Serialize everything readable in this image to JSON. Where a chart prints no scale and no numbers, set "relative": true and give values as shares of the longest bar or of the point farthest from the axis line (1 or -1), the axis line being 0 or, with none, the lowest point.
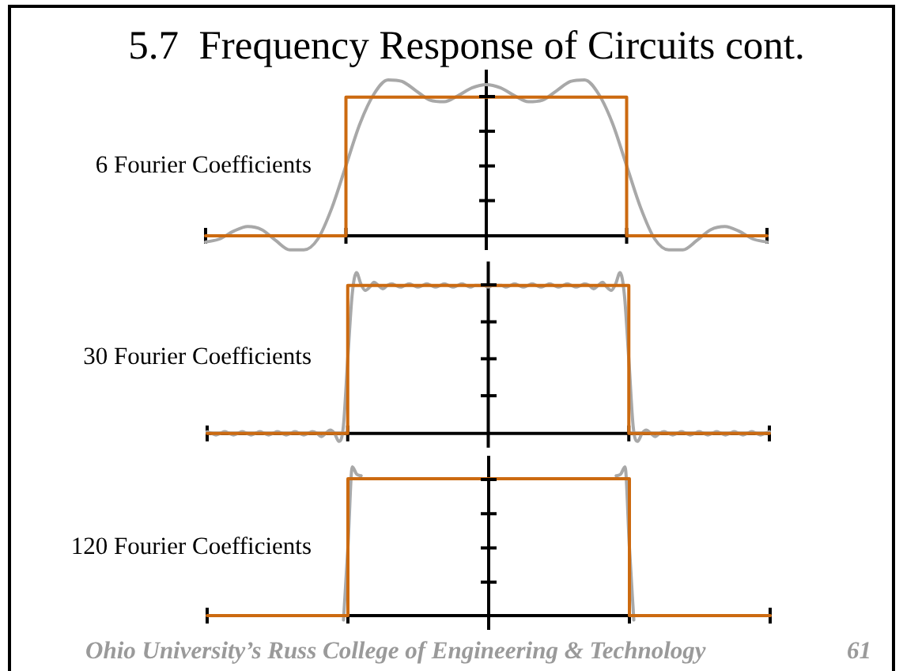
{
  "chart_data": [
    {
      "type": "line",
      "title": "5.7  Frequency Response of Circuits cont.",
      "ylabel": "6 Fourier Coefficients",
      "relative": true,
      "categories": [
        null,
        null,
        null,
        null,
        null,
        null,
        null,
        null,
        null,
        null,
        null,
        null,
        null,
        null,
        null,
        null,
        null,
        null,
        null,
        null,
        null,
        null,
        null,
        null,
        null,
        null,
        null,
        null,
        null,
        null,
        null,
        null,
        null,
        null,
        null,
        null,
        null,
        null,
        null,
        null,
        null
      ],
      "series": [
        {
          "color": "#a8a8a8",
          "values": [
            -0.04,
            -0.02,
            0.03,
            0.06,
            0.04,
            -0.03,
            -0.09,
            -0.09,
            -0.02,
            0.18,
            0.45,
            0.72,
            0.91,
            1.0,
            0.99,
            0.93,
            0.87,
            0.86,
            0.9,
            0.95,
            0.97,
            0.95,
            0.9,
            0.86,
            0.87,
            0.93,
            0.99,
            1.0,
            0.91,
            0.72,
            0.45,
            0.18,
            -0.02,
            -0.09,
            -0.09,
            -0.03,
            0.04,
            0.06,
            0.03,
            -0.02,
            -0.04
          ]
        },
        {
          "type": "step",
          "color": "#cc6a10",
          "values": [
            0,
            0,
            0,
            0,
            0,
            0,
            0,
            0,
            0,
            0,
            0.89,
            0.89,
            0.89,
            0.89,
            0.89,
            0.89,
            0.89,
            0.89,
            0.89,
            0.89,
            0.89,
            0.89,
            0.89,
            0.89,
            0.89,
            0.89,
            0.89,
            0.89,
            0.89,
            0.89,
            0,
            0,
            0,
            0,
            0,
            0,
            0,
            0,
            0,
            0,
            0
          ]
        }
      ]
    },
    {
      "type": "line",
      "ylabel": "30 Fourier Coefficients",
      "relative": true,
      "categories": [
        null,
        null,
        null,
        null,
        null,
        null,
        null,
        null,
        null,
        null,
        null,
        null,
        null,
        null,
        null,
        null,
        null,
        null,
        null,
        null,
        null,
        null,
        null,
        null,
        null,
        null,
        null,
        null,
        null,
        null,
        null,
        null,
        null,
        null,
        null,
        null,
        null,
        null,
        null,
        null,
        null,
        null,
        null,
        null,
        null,
        null,
        null,
        null,
        null,
        null,
        null,
        null,
        null,
        null,
        null,
        null,
        null,
        null,
        null,
        null,
        null,
        null,
        null,
        null,
        null,
        null,
        null,
        null,
        null,
        null,
        null,
        null,
        null,
        null,
        null,
        null,
        null,
        null,
        null,
        null,
        null,
        null,
        null,
        null,
        null,
        null,
        null,
        null,
        null,
        null,
        null,
        null,
        null,
        null,
        null,
        null,
        null,
        null,
        null,
        null,
        null,
        null,
        null,
        null,
        null,
        null,
        null,
        null,
        null,
        null,
        null,
        null,
        null,
        null,
        null,
        null,
        null,
        null,
        null,
        null,
        null,
        null,
        null,
        null,
        null,
        null,
        null,
        null,
        null
      ],
      "series": [
        {
          "color": "#a8a8a8",
          "values": [
            0.01,
            0,
            -0.01,
            0,
            0.01,
            0,
            -0.01,
            0,
            0.01,
            0,
            -0.01,
            0,
            0.01,
            0,
            -0.01,
            0,
            0.01,
            0,
            -0.01,
            0,
            0.01,
            0,
            -0.01,
            0,
            0.01,
            0,
            -0.02,
            0,
            0.02,
            0,
            -0.05,
            0.04,
            0.46,
            0.86,
            1.0,
            0.93,
            0.89,
            0.91,
            0.94,
            0.92,
            0.9,
            0.92,
            0.93,
            0.92,
            0.91,
            0.92,
            0.93,
            0.92,
            0.91,
            0.92,
            0.93,
            0.92,
            0.91,
            0.92,
            0.93,
            0.92,
            0.91,
            0.92,
            0.93,
            0.92,
            0.91,
            0.92,
            0.92,
            0.92,
            0.91,
            0.92,
            0.92,
            0.92,
            0.91,
            0.92,
            0.93,
            0.92,
            0.91,
            0.92,
            0.93,
            0.92,
            0.91,
            0.92,
            0.93,
            0.92,
            0.91,
            0.92,
            0.93,
            0.92,
            0.91,
            0.92,
            0.93,
            0.92,
            0.9,
            0.92,
            0.94,
            0.91,
            0.89,
            0.93,
            1.0,
            0.86,
            0.46,
            0.04,
            -0.05,
            0,
            0.02,
            0,
            -0.02,
            0,
            0.01,
            0,
            -0.01,
            0,
            0.01,
            0,
            -0.01,
            0,
            0.01,
            0,
            -0.01,
            0,
            0.01,
            0,
            -0.01,
            0,
            0.01,
            0,
            -0.01,
            0,
            0.01,
            0,
            -0.01,
            0,
            0.01
          ]
        },
        {
          "type": "step",
          "color": "#cc6a10",
          "values": [
            0,
            0,
            0,
            0,
            0,
            0,
            0,
            0,
            0,
            0,
            0,
            0,
            0,
            0,
            0,
            0,
            0,
            0,
            0,
            0,
            0,
            0,
            0,
            0,
            0,
            0,
            0,
            0,
            0,
            0,
            0,
            0,
            0.92,
            0.92,
            0.92,
            0.92,
            0.92,
            0.92,
            0.92,
            0.92,
            0.92,
            0.92,
            0.92,
            0.92,
            0.92,
            0.92,
            0.92,
            0.92,
            0.92,
            0.92,
            0.92,
            0.92,
            0.92,
            0.92,
            0.92,
            0.92,
            0.92,
            0.92,
            0.92,
            0.92,
            0.92,
            0.92,
            0.92,
            0.92,
            0.92,
            0.92,
            0.92,
            0.92,
            0.92,
            0.92,
            0.92,
            0.92,
            0.92,
            0.92,
            0.92,
            0.92,
            0.92,
            0.92,
            0.92,
            0.92,
            0.92,
            0.92,
            0.92,
            0.92,
            0.92,
            0.92,
            0.92,
            0.92,
            0.92,
            0.92,
            0.92,
            0.92,
            0.92,
            0.92,
            0.92,
            0.92,
            0,
            0,
            0,
            0,
            0,
            0,
            0,
            0,
            0,
            0,
            0,
            0,
            0,
            0,
            0,
            0,
            0,
            0,
            0,
            0,
            0,
            0,
            0,
            0,
            0,
            0,
            0,
            0,
            0,
            0,
            0,
            0,
            0
          ]
        }
      ]
    },
    {
      "type": "line",
      "ylabel": "120 Fourier Coefficients",
      "relative": true,
      "categories": [
        null,
        null,
        null,
        null,
        null,
        null,
        null,
        null,
        null,
        null,
        null,
        null,
        null,
        null,
        null,
        null,
        null,
        null,
        null,
        null,
        null,
        null,
        null,
        null,
        null,
        null,
        null,
        null,
        null,
        null,
        null,
        null,
        null,
        null,
        null,
        null,
        null,
        null,
        null,
        null,
        null,
        null,
        null,
        null,
        null,
        null,
        null,
        null,
        null,
        null,
        null,
        null,
        null,
        null,
        null,
        null,
        null,
        null,
        null,
        null,
        null,
        null,
        null,
        null,
        null,
        null,
        null,
        null,
        null,
        null,
        null,
        null,
        null,
        null,
        null,
        null,
        null,
        null,
        null,
        null,
        null,
        null,
        null,
        null,
        null,
        null,
        null,
        null,
        null,
        null,
        null,
        null,
        null,
        null,
        null,
        null,
        null,
        null,
        null,
        null,
        null,
        null,
        null,
        null,
        null,
        null,
        null,
        null,
        null,
        null,
        null,
        null,
        null,
        null,
        null,
        null,
        null,
        null,
        null,
        null,
        null,
        null,
        null,
        null,
        null,
        null,
        null,
        null,
        null
      ],
      "series": [
        {
          "color": "#a8a8a8",
          "values": [
            null,
            null,
            null,
            null,
            null,
            null,
            null,
            null,
            null,
            null,
            null,
            null,
            null,
            null,
            null,
            null,
            null,
            null,
            null,
            null,
            null,
            null,
            null,
            null,
            null,
            null,
            null,
            null,
            null,
            null,
            null,
            -0.03,
            0.46,
            1.0,
            0.95,
            0.94,
            null,
            null,
            null,
            null,
            null,
            null,
            null,
            null,
            null,
            null,
            null,
            null,
            null,
            null,
            null,
            null,
            null,
            null,
            null,
            null,
            null,
            null,
            null,
            null,
            null,
            null,
            null,
            null,
            null,
            null,
            null,
            null,
            null,
            null,
            null,
            null,
            null,
            null,
            null,
            null,
            null,
            null,
            null,
            null,
            null,
            null,
            null,
            null,
            null,
            null,
            null,
            null,
            null,
            null,
            null,
            null,
            null,
            0.94,
            0.95,
            1.0,
            0.46,
            -0.03,
            null,
            null,
            null,
            null,
            null,
            null,
            null,
            null,
            null,
            null,
            null,
            null,
            null,
            null,
            null,
            null,
            null,
            null,
            null,
            null,
            null,
            null,
            null,
            null,
            null,
            null,
            null,
            null,
            null,
            null,
            null
          ]
        },
        {
          "type": "step",
          "color": "#cc6a10",
          "values": [
            0,
            0,
            0,
            0,
            0,
            0,
            0,
            0,
            0,
            0,
            0,
            0,
            0,
            0,
            0,
            0,
            0,
            0,
            0,
            0,
            0,
            0,
            0,
            0,
            0,
            0,
            0,
            0,
            0,
            0,
            0,
            0,
            0.92,
            0.92,
            0.92,
            0.92,
            0.92,
            0.92,
            0.92,
            0.92,
            0.92,
            0.92,
            0.92,
            0.92,
            0.92,
            0.92,
            0.92,
            0.92,
            0.92,
            0.92,
            0.92,
            0.92,
            0.92,
            0.92,
            0.92,
            0.92,
            0.92,
            0.92,
            0.92,
            0.92,
            0.92,
            0.92,
            0.92,
            0.92,
            0.92,
            0.92,
            0.92,
            0.92,
            0.92,
            0.92,
            0.92,
            0.92,
            0.92,
            0.92,
            0.92,
            0.92,
            0.92,
            0.92,
            0.92,
            0.92,
            0.92,
            0.92,
            0.92,
            0.92,
            0.92,
            0.92,
            0.92,
            0.92,
            0.92,
            0.92,
            0.92,
            0.92,
            0.92,
            0.92,
            0.92,
            0.92,
            0,
            0,
            0,
            0,
            0,
            0,
            0,
            0,
            0,
            0,
            0,
            0,
            0,
            0,
            0,
            0,
            0,
            0,
            0,
            0,
            0,
            0,
            0,
            0,
            0,
            0,
            0,
            0,
            0,
            0,
            0,
            0,
            0
          ]
        }
      ],
      "annotations": [
        "Ohio University’s Russ College of Engineering & Technology",
        "61"
      ]
    }
  ]
}
